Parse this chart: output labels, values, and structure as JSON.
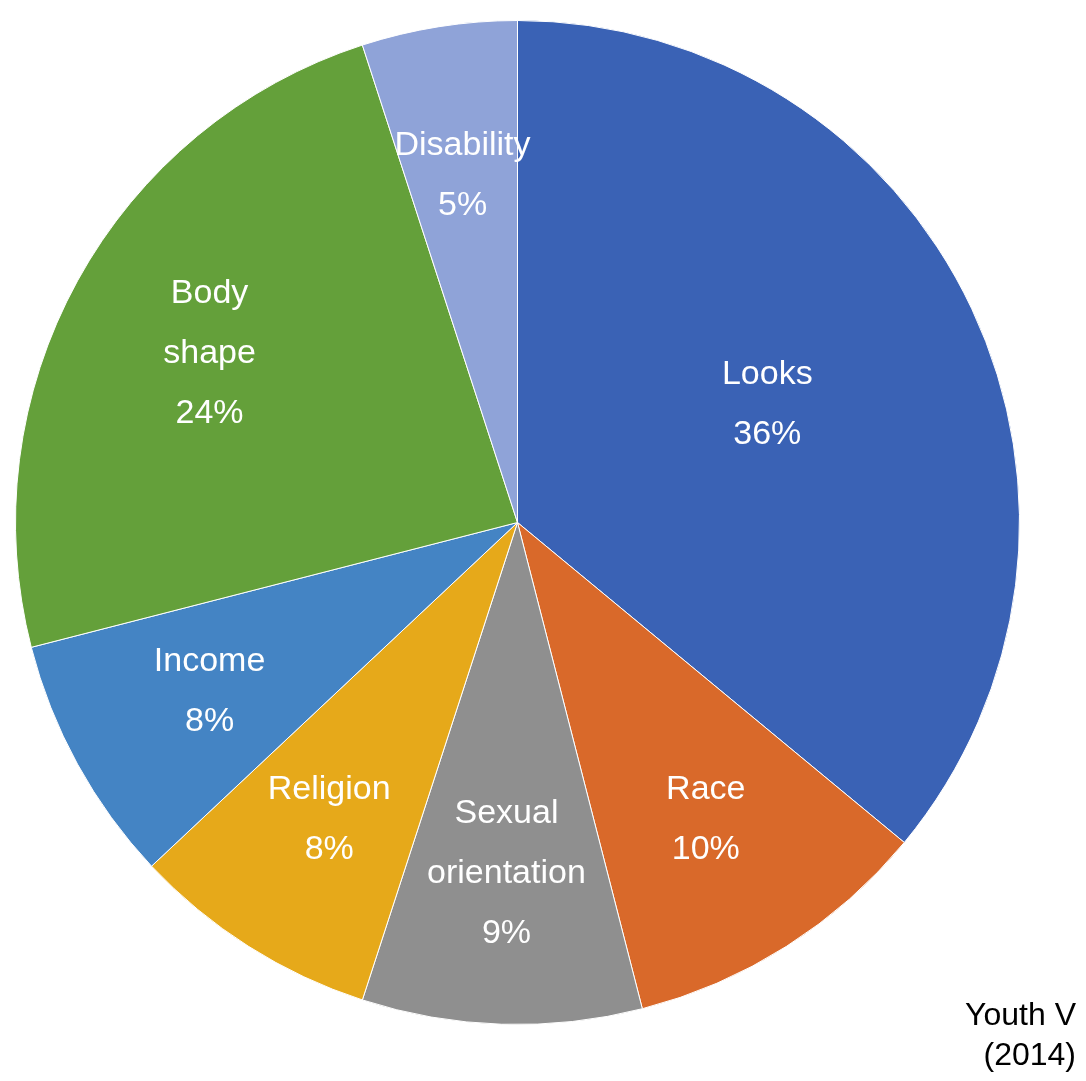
{
  "chart_data": {
    "type": "pie",
    "categories": [
      "Looks",
      "Race",
      "Sexual orientation",
      "Religion",
      "Income",
      "Body shape",
      "Disability"
    ],
    "values": [
      36,
      10,
      9,
      8,
      8,
      24,
      5
    ],
    "value_labels": [
      "36%",
      "10%",
      "9%",
      "8%",
      "8%",
      "24%",
      "5%"
    ],
    "colors": [
      "#3a62b5",
      "#d9692a",
      "#8f8f8f",
      "#e6a91a",
      "#4484c4",
      "#64a03a",
      "#8fa3d8"
    ],
    "legend": false,
    "annotations": [
      "Youth V (2014)"
    ]
  }
}
